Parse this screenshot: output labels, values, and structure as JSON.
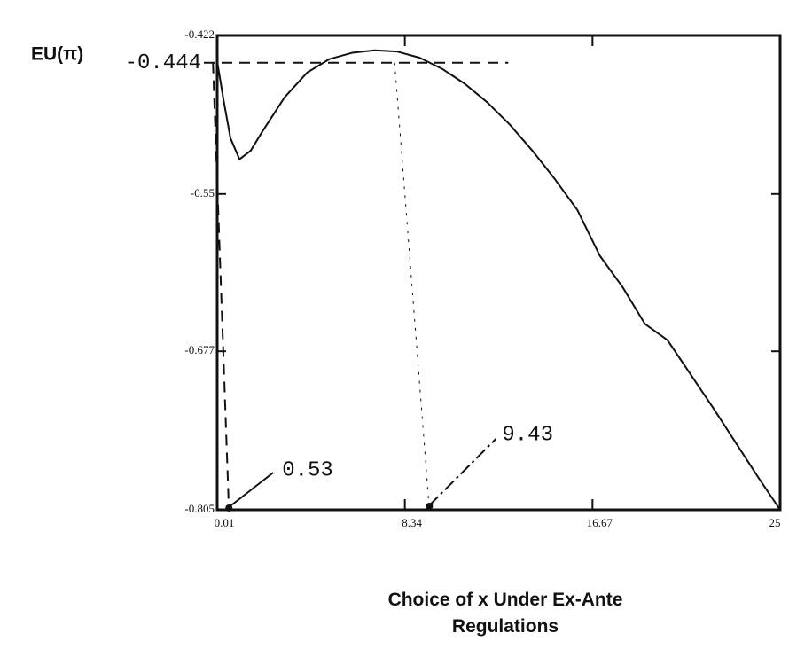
{
  "chart_data": {
    "type": "line",
    "ylabel": "EU(π)",
    "xlabel": "Choice of x Under Ex-Ante Regulations",
    "x": [
      0.01,
      0.3,
      0.6,
      1.0,
      1.5,
      2,
      3,
      4,
      5,
      6,
      7,
      8,
      9,
      10,
      11,
      12,
      13,
      14,
      15,
      16,
      17,
      18,
      19,
      20,
      21,
      22,
      23,
      24,
      25
    ],
    "series": [
      {
        "color": "#111111",
        "values": [
          -0.443,
          -0.475,
          -0.505,
          -0.522,
          -0.515,
          -0.5,
          -0.472,
          -0.452,
          -0.441,
          -0.436,
          -0.434,
          -0.435,
          -0.44,
          -0.449,
          -0.461,
          -0.476,
          -0.494,
          -0.515,
          -0.538,
          -0.563,
          -0.6,
          -0.625,
          -0.655,
          -0.668,
          -0.695,
          -0.722,
          -0.75,
          -0.778,
          -0.805
        ]
      }
    ],
    "xlim": [
      0.01,
      25
    ],
    "xticks": [
      0.01,
      8.34,
      16.67,
      25
    ],
    "ylim": [
      -0.805,
      -0.422
    ],
    "yticks": [
      -0.805,
      -0.677,
      -0.55,
      -0.422
    ],
    "annotations": {
      "level": "-0.444",
      "low": "0.53",
      "high": "9.43"
    }
  }
}
